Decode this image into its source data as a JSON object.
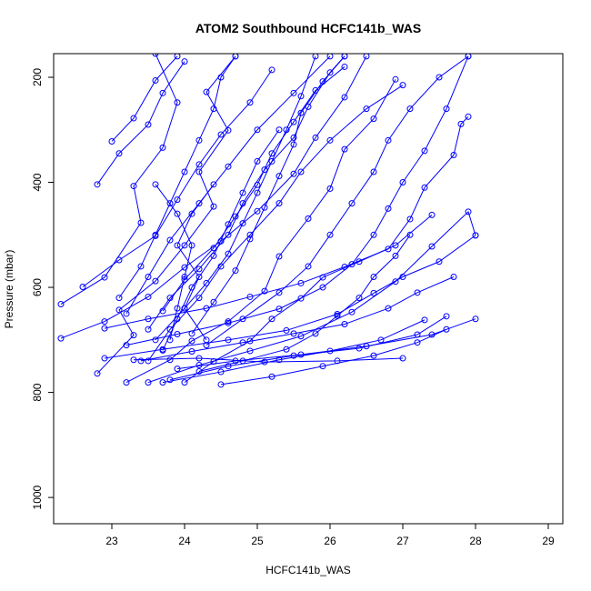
{
  "chart_data": {
    "type": "line",
    "title": "ATOM2 Southbound HCFC141b_WAS",
    "xlabel": "HCFC141b_WAS",
    "ylabel": "Pressure (mbar)",
    "xlim": [
      22.2,
      29.2
    ],
    "ylim": [
      1050,
      155
    ],
    "y_reversed": true,
    "xticks": [
      23,
      24,
      25,
      26,
      27,
      28,
      29
    ],
    "yticks": [
      200,
      400,
      600,
      800,
      1000
    ],
    "grid": false,
    "marker": "open-circle",
    "color": "#0000ff",
    "series": [
      {
        "values": [
          [
            22.3,
            632
          ],
          [
            22.9,
            581
          ],
          [
            23.4,
            477
          ],
          [
            23.3,
            407
          ],
          [
            23.7,
            334
          ],
          [
            23.9,
            248
          ],
          [
            23.6,
            155
          ]
        ]
      },
      {
        "values": [
          [
            22.8,
            764
          ],
          [
            23.3,
            691
          ],
          [
            23.1,
            643
          ],
          [
            23.6,
            588
          ],
          [
            24.0,
            520
          ],
          [
            24.4,
            446
          ],
          [
            24.2,
            380
          ],
          [
            24.6,
            301
          ],
          [
            24.3,
            228
          ],
          [
            24.7,
            160
          ]
        ]
      },
      {
        "values": [
          [
            23.2,
            781
          ],
          [
            23.8,
            738
          ],
          [
            24.1,
            702
          ],
          [
            24.6,
            665
          ],
          [
            25.1,
            607
          ],
          [
            25.3,
            541
          ],
          [
            25.7,
            469
          ],
          [
            26.0,
            412
          ],
          [
            26.2,
            337
          ],
          [
            26.6,
            279
          ],
          [
            26.9,
            204
          ]
        ]
      },
      {
        "values": [
          [
            22.3,
            697
          ],
          [
            22.9,
            665
          ],
          [
            23.5,
            618
          ],
          [
            24.0,
            562
          ],
          [
            24.5,
            512
          ],
          [
            25.0,
            455
          ],
          [
            25.5,
            384
          ],
          [
            25.8,
            315
          ],
          [
            26.2,
            238
          ],
          [
            26.5,
            160
          ]
        ]
      },
      {
        "values": [
          [
            23.5,
            781
          ],
          [
            24.2,
            748
          ],
          [
            24.9,
            721
          ],
          [
            25.6,
            693
          ],
          [
            26.3,
            647
          ],
          [
            26.9,
            589
          ],
          [
            27.4,
            522
          ],
          [
            27.9,
            456
          ],
          [
            28.0,
            501
          ]
        ]
      },
      {
        "values": [
          [
            22.6,
            599
          ],
          [
            23.1,
            548
          ],
          [
            23.6,
            502
          ],
          [
            23.9,
            433
          ],
          [
            24.2,
            366
          ],
          [
            24.5,
            309
          ],
          [
            24.9,
            248
          ],
          [
            25.2,
            186
          ]
        ]
      },
      {
        "values": [
          [
            23.0,
            322
          ],
          [
            23.3,
            278
          ],
          [
            23.6,
            206
          ],
          [
            23.9,
            160
          ]
        ]
      },
      {
        "values": [
          [
            23.7,
            781
          ],
          [
            24.5,
            761
          ],
          [
            25.3,
            738
          ],
          [
            26.0,
            721
          ],
          [
            26.7,
            700
          ],
          [
            27.3,
            662
          ]
        ]
      },
      {
        "values": [
          [
            22.9,
            735
          ],
          [
            23.7,
            718
          ],
          [
            24.6,
            700
          ],
          [
            25.4,
            682
          ],
          [
            26.1,
            651
          ],
          [
            26.6,
            611
          ],
          [
            27.0,
            580
          ],
          [
            27.5,
            551
          ],
          [
            28.0,
            501
          ]
        ]
      },
      {
        "values": [
          [
            23.3,
            738
          ],
          [
            24.2,
            735
          ],
          [
            25.1,
            742
          ],
          [
            26.1,
            740
          ],
          [
            27.0,
            735
          ]
        ]
      },
      {
        "values": [
          [
            24.0,
            781
          ],
          [
            24.4,
            741
          ],
          [
            24.9,
            702
          ],
          [
            25.2,
            660
          ],
          [
            25.6,
            621
          ],
          [
            25.9,
            581
          ],
          [
            26.4,
            551
          ],
          [
            26.9,
            520
          ],
          [
            27.4,
            462
          ]
        ]
      },
      {
        "values": [
          [
            23.5,
            680
          ],
          [
            23.8,
            620
          ],
          [
            24.2,
            565
          ],
          [
            24.6,
            500
          ],
          [
            24.8,
            440
          ],
          [
            25.1,
            376
          ],
          [
            25.5,
            315
          ],
          [
            25.7,
            256
          ],
          [
            26.0,
            191
          ],
          [
            26.2,
            160
          ]
        ]
      },
      {
        "values": [
          [
            23.8,
            776
          ],
          [
            24.6,
            750
          ],
          [
            25.5,
            730
          ],
          [
            26.4,
            716
          ],
          [
            27.2,
            690
          ],
          [
            27.6,
            655
          ]
        ]
      },
      {
        "values": [
          [
            22.9,
            678
          ],
          [
            23.5,
            660
          ],
          [
            24.3,
            640
          ],
          [
            24.9,
            618
          ],
          [
            25.6,
            592
          ],
          [
            26.2,
            561
          ],
          [
            26.8,
            527
          ],
          [
            27.1,
            470
          ],
          [
            27.3,
            410
          ],
          [
            27.7,
            348
          ],
          [
            27.8,
            289
          ],
          [
            27.9,
            275
          ]
        ]
      },
      {
        "values": [
          [
            24.2,
            760
          ],
          [
            24.8,
            740
          ],
          [
            25.4,
            718
          ],
          [
            25.8,
            688
          ],
          [
            26.1,
            654
          ],
          [
            26.4,
            620
          ],
          [
            26.6,
            580
          ],
          [
            26.9,
            540
          ],
          [
            27.1,
            500
          ]
        ]
      },
      {
        "values": [
          [
            23.2,
            710
          ],
          [
            23.9,
            689
          ],
          [
            24.6,
            668
          ],
          [
            25.3,
            641
          ],
          [
            25.9,
            600
          ],
          [
            26.3,
            556
          ],
          [
            26.6,
            500
          ],
          [
            26.8,
            450
          ],
          [
            27.0,
            400
          ],
          [
            27.3,
            340
          ],
          [
            27.6,
            260
          ],
          [
            27.9,
            160
          ]
        ]
      },
      {
        "values": [
          [
            23.6,
            700
          ],
          [
            24.0,
            640
          ],
          [
            24.3,
            592
          ],
          [
            24.6,
            536
          ],
          [
            24.8,
            478
          ],
          [
            25.0,
            420
          ],
          [
            25.2,
            360
          ],
          [
            25.4,
            300
          ],
          [
            25.6,
            236
          ],
          [
            25.8,
            160
          ]
        ]
      },
      {
        "values": [
          [
            24.5,
            785
          ],
          [
            25.2,
            770
          ],
          [
            25.9,
            750
          ],
          [
            26.6,
            730
          ],
          [
            27.2,
            705
          ],
          [
            27.6,
            680
          ]
        ]
      },
      {
        "values": [
          [
            23.4,
            740
          ],
          [
            24.1,
            722
          ],
          [
            24.8,
            705
          ],
          [
            25.5,
            688
          ],
          [
            26.2,
            670
          ],
          [
            26.8,
            640
          ],
          [
            27.2,
            610
          ],
          [
            27.7,
            580
          ]
        ]
      },
      {
        "values": [
          [
            24.1,
            688
          ],
          [
            24.4,
            628
          ],
          [
            24.7,
            568
          ],
          [
            24.9,
            508
          ],
          [
            25.1,
            448
          ],
          [
            25.3,
            388
          ],
          [
            25.5,
            328
          ],
          [
            25.6,
            268
          ],
          [
            25.9,
            208
          ],
          [
            26.2,
            160
          ]
        ]
      },
      {
        "values": [
          [
            23.1,
            620
          ],
          [
            23.4,
            560
          ],
          [
            23.6,
            500
          ],
          [
            23.8,
            440
          ],
          [
            24.0,
            380
          ],
          [
            24.2,
            320
          ],
          [
            24.4,
            260
          ],
          [
            24.5,
            200
          ],
          [
            24.7,
            160
          ]
        ]
      },
      {
        "values": [
          [
            23.9,
            755
          ],
          [
            24.7,
            740
          ],
          [
            25.6,
            728
          ],
          [
            26.5,
            712
          ],
          [
            27.4,
            690
          ],
          [
            28.0,
            660
          ]
        ]
      },
      {
        "values": [
          [
            24.3,
            710
          ],
          [
            24.8,
            660
          ],
          [
            25.3,
            610
          ],
          [
            25.7,
            560
          ],
          [
            26.0,
            500
          ],
          [
            26.3,
            440
          ],
          [
            26.6,
            380
          ],
          [
            26.8,
            320
          ],
          [
            27.1,
            260
          ],
          [
            27.5,
            200
          ],
          [
            27.9,
            160
          ]
        ]
      },
      {
        "values": [
          [
            23.7,
            645
          ],
          [
            24.0,
            585
          ],
          [
            24.4,
            525
          ],
          [
            24.7,
            465
          ],
          [
            25.0,
            405
          ],
          [
            25.2,
            345
          ],
          [
            25.5,
            285
          ],
          [
            25.8,
            225
          ],
          [
            26.2,
            180
          ]
        ]
      },
      {
        "values": [
          [
            22.8,
            404
          ],
          [
            23.1,
            345
          ],
          [
            23.5,
            290
          ],
          [
            23.7,
            230
          ],
          [
            24.0,
            170
          ]
        ]
      },
      {
        "values": [
          [
            23.6,
            404
          ],
          [
            23.9,
            460
          ],
          [
            24.1,
            520
          ],
          [
            24.0,
            580
          ],
          [
            23.9,
            640
          ],
          [
            23.8,
            700
          ]
        ]
      },
      {
        "values": [
          [
            24.4,
            404
          ],
          [
            24.1,
            460
          ],
          [
            23.9,
            520
          ],
          [
            24.2,
            580
          ],
          [
            24.0,
            640
          ],
          [
            24.3,
            700
          ]
        ]
      },
      {
        "values": [
          [
            25.3,
            300
          ],
          [
            25.0,
            360
          ],
          [
            24.8,
            420
          ],
          [
            24.6,
            480
          ],
          [
            24.4,
            540
          ],
          [
            24.1,
            600
          ],
          [
            23.9,
            660
          ],
          [
            23.7,
            720
          ]
        ]
      },
      {
        "values": [
          [
            27.0,
            215
          ],
          [
            26.5,
            260
          ],
          [
            26.0,
            320
          ],
          [
            25.6,
            380
          ],
          [
            25.3,
            440
          ],
          [
            24.9,
            500
          ],
          [
            24.5,
            560
          ],
          [
            24.2,
            620
          ],
          [
            23.8,
            680
          ],
          [
            23.5,
            740
          ]
        ]
      },
      {
        "values": [
          [
            26.0,
            160
          ],
          [
            25.5,
            230
          ],
          [
            25.0,
            300
          ],
          [
            24.6,
            370
          ],
          [
            24.2,
            440
          ],
          [
            23.8,
            510
          ],
          [
            23.5,
            580
          ],
          [
            23.2,
            650
          ]
        ]
      }
    ]
  }
}
